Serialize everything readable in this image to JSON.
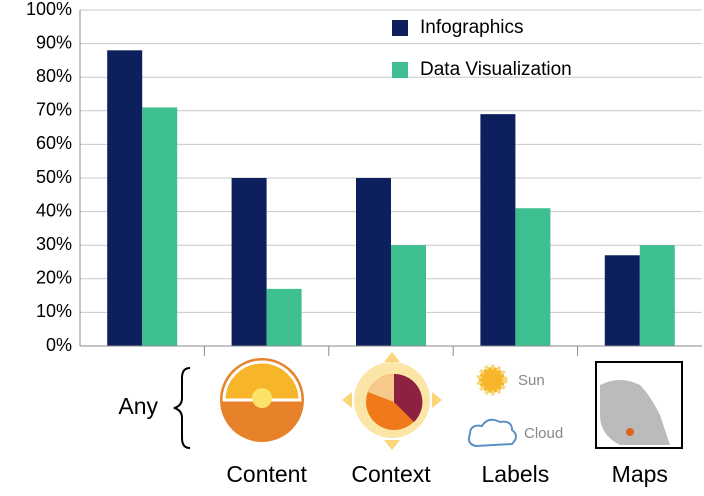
{
  "chart_data": {
    "type": "bar",
    "categories": [
      "Any",
      "Content",
      "Context",
      "Labels",
      "Maps"
    ],
    "series": [
      {
        "name": "Infographics",
        "color": "#0d1f5c",
        "values": [
          88,
          50,
          50,
          69,
          27
        ]
      },
      {
        "name": "Data Visualization",
        "color": "#3dbf8f",
        "values": [
          71,
          17,
          30,
          41,
          30
        ]
      }
    ],
    "ylim": [
      0,
      100
    ],
    "yticks": [
      {
        "value": 0,
        "label": "0%"
      },
      {
        "value": 10,
        "label": "10%"
      },
      {
        "value": 20,
        "label": "20%"
      },
      {
        "value": 30,
        "label": "30%"
      },
      {
        "value": 40,
        "label": "40%"
      },
      {
        "value": 50,
        "label": "50%"
      },
      {
        "value": 60,
        "label": "60%"
      },
      {
        "value": 70,
        "label": "70%"
      },
      {
        "value": 80,
        "label": "80%"
      },
      {
        "value": 90,
        "label": "90%"
      },
      {
        "value": 100,
        "label": "100%"
      }
    ],
    "grid": true,
    "legend": "top-right",
    "annotations": [
      "Sun",
      "Cloud"
    ]
  }
}
